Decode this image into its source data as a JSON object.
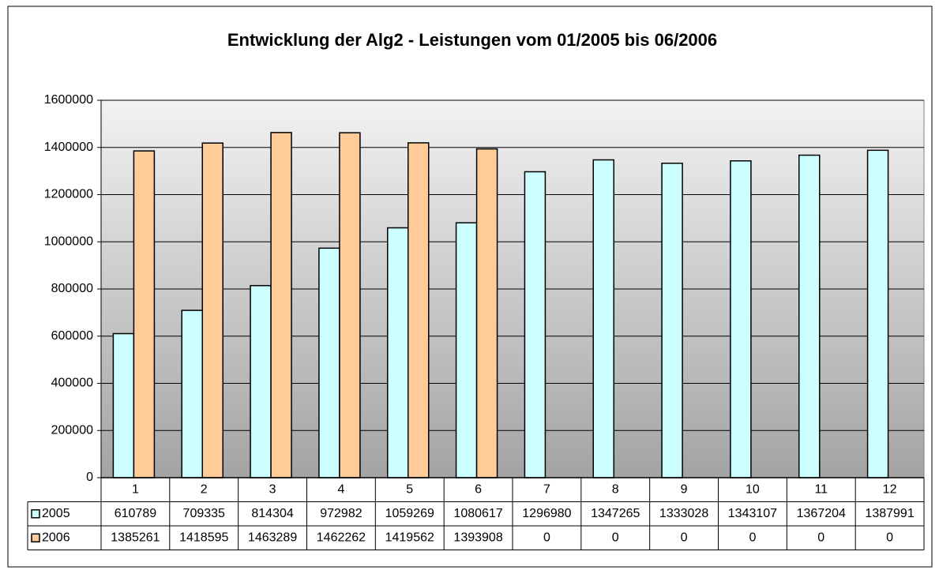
{
  "chart_data": {
    "type": "bar",
    "title": "Entwicklung der Alg2 - Leistungen vom 01/2005 bis 06/2006",
    "categories": [
      "1",
      "2",
      "3",
      "4",
      "5",
      "6",
      "7",
      "8",
      "9",
      "10",
      "11",
      "12"
    ],
    "series": [
      {
        "name": "2005",
        "color": "#ccffff",
        "values": [
          610789,
          709335,
          814304,
          972982,
          1059269,
          1080617,
          1296980,
          1347265,
          1333028,
          1343107,
          1367204,
          1387991
        ]
      },
      {
        "name": "2006",
        "color": "#ffcc99",
        "values": [
          1385261,
          1418595,
          1463289,
          1462262,
          1419562,
          1393908,
          0,
          0,
          0,
          0,
          0,
          0
        ]
      }
    ],
    "ylim": [
      0,
      1600000
    ],
    "yticks": [
      0,
      200000,
      400000,
      600000,
      800000,
      1000000,
      1200000,
      1400000,
      1600000
    ],
    "grid": true,
    "data_table": true
  }
}
